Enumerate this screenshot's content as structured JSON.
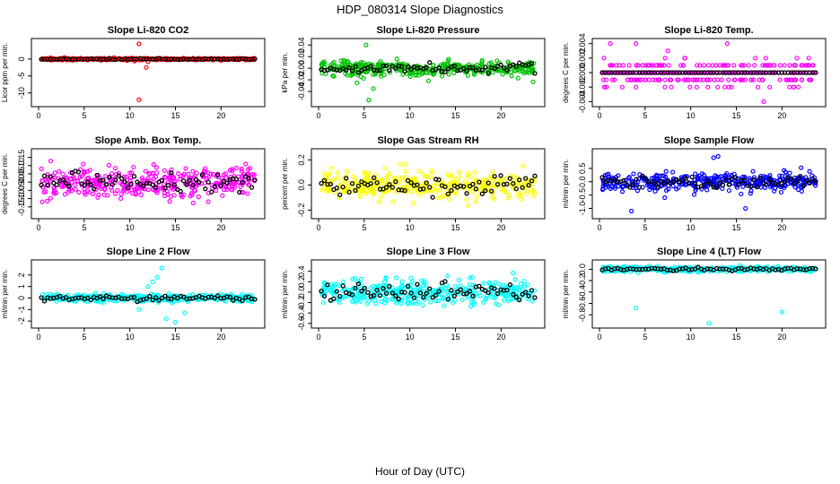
{
  "figure": {
    "title": "HDP_080314  Slope Diagnostics",
    "xlabel": "Hour of Day (UTC)"
  },
  "chart_data": [
    {
      "type": "scatter",
      "title": "Slope Li-820 CO2",
      "ylabel": "Licor ppm per min.",
      "color": "#ff0000",
      "xlim": [
        0,
        24
      ],
      "ylim": [
        -13,
        5
      ],
      "xticks": [
        0,
        5,
        10,
        15,
        20
      ],
      "xtick_labels": [
        "0",
        "5",
        "10",
        "15",
        "20"
      ],
      "yticks": [
        -10,
        -5,
        0
      ],
      "ytick_labels": [
        "-10",
        "-5",
        "0"
      ],
      "spread": 0.25,
      "outliers": [
        [
          11,
          4.5
        ],
        [
          11,
          -12
        ],
        [
          11.8,
          -2.5
        ],
        [
          12,
          -0.8
        ],
        [
          10.5,
          -0.6
        ]
      ]
    },
    {
      "type": "scatter",
      "title": "Slope Li-820 Pressure",
      "ylabel": "kPa per min.",
      "color": "#00c000",
      "xlim": [
        0,
        24
      ],
      "ylim": [
        -0.06,
        0.045
      ],
      "xticks": [
        0,
        5,
        10,
        15,
        20
      ],
      "xtick_labels": [
        "0",
        "5",
        "10",
        "15",
        "20"
      ],
      "yticks": [
        -0.04,
        -0.02,
        0.0,
        0.02,
        0.04
      ],
      "ytick_labels": [
        "-0.04",
        "-0.02",
        "0.00",
        "0.02",
        "0.04"
      ],
      "spread": 0.012,
      "outliers": [
        [
          5.2,
          0.04
        ],
        [
          5.5,
          -0.055
        ],
        [
          6,
          -0.035
        ],
        [
          4.2,
          -0.025
        ]
      ]
    },
    {
      "type": "scatter",
      "title": "Slope Li-820 Temp.",
      "ylabel": "degrees C per min.",
      "color": "#ff00ff",
      "xlim": [
        0,
        24
      ],
      "ylim": [
        -0.0042,
        0.0042
      ],
      "xticks": [
        0,
        5,
        10,
        15,
        20
      ],
      "xtick_labels": [
        "0",
        "5",
        "10",
        "15",
        "20"
      ],
      "yticks": [
        -0.004,
        -0.002,
        0.0,
        0.002,
        0.004
      ],
      "ytick_labels": [
        "-0.004",
        "-0.002",
        "0.000",
        "0.002",
        "0.004"
      ],
      "spread": 0.001,
      "outliers": [
        [
          1.2,
          0.004
        ],
        [
          4,
          0.004
        ],
        [
          14,
          0.004
        ],
        [
          18,
          -0.004
        ]
      ]
    },
    {
      "type": "scatter",
      "title": "Slope Amb. Box Temp.",
      "ylabel": "degrees C per min.",
      "color": "#ff00ff",
      "xlim": [
        0,
        24
      ],
      "ylim": [
        -0.2,
        0.18
      ],
      "xticks": [
        0,
        5,
        10,
        15,
        20
      ],
      "xtick_labels": [
        "0",
        "5",
        "10",
        "15",
        "20"
      ],
      "yticks": [
        -0.15,
        -0.1,
        -0.05,
        0.0,
        0.05,
        0.1,
        0.15
      ],
      "ytick_labels": [
        "-0.15",
        "-0.10",
        "-0.05",
        "0.00",
        "0.05",
        "0.10",
        "0.15"
      ],
      "spread": 0.09,
      "outliers": []
    },
    {
      "type": "scatter",
      "title": "Slope Gas Stream RH",
      "ylabel": "percent per min.",
      "color": "#ffff00",
      "xlim": [
        0,
        24
      ],
      "ylim": [
        -0.24,
        0.26
      ],
      "xticks": [
        0,
        5,
        10,
        15,
        20
      ],
      "xtick_labels": [
        "0",
        "5",
        "10",
        "15",
        "20"
      ],
      "yticks": [
        -0.2,
        0.0,
        0.2
      ],
      "ytick_labels": [
        "-0.2",
        "0.0",
        "0.2"
      ],
      "spread": 0.09,
      "outliers": []
    },
    {
      "type": "scatter",
      "title": "Slope Sample Flow",
      "ylabel": "ml/min per min.",
      "color": "#0000ff",
      "xlim": [
        0,
        24
      ],
      "ylim": [
        -1.25,
        1.1
      ],
      "xticks": [
        0,
        5,
        10,
        15,
        20
      ],
      "xtick_labels": [
        "0",
        "5",
        "10",
        "15",
        "20"
      ],
      "yticks": [
        -1.0,
        -0.5,
        0.0,
        0.5
      ],
      "ytick_labels": [
        "-1.0",
        "-0.5",
        "0.0",
        "0.5"
      ],
      "spread": 0.3,
      "outliers": [
        [
          12.5,
          0.9
        ],
        [
          13,
          0.95
        ],
        [
          3.5,
          -1.1
        ],
        [
          16,
          -1.0
        ]
      ]
    },
    {
      "type": "scatter",
      "title": "Slope Line 2 Flow",
      "ylabel": "ml/min per min.",
      "color": "#00ffff",
      "xlim": [
        0,
        24
      ],
      "ylim": [
        -2.3,
        3.0
      ],
      "xticks": [
        0,
        5,
        10,
        15,
        20
      ],
      "xtick_labels": [
        "0",
        "5",
        "10",
        "15",
        "20"
      ],
      "yticks": [
        -2,
        -1,
        0,
        1,
        2
      ],
      "ytick_labels": [
        "-2",
        "-1",
        "0",
        "1",
        "2"
      ],
      "spread": 0.3,
      "outliers": [
        [
          13.5,
          2.6
        ],
        [
          13,
          1.8
        ],
        [
          12.5,
          1.4
        ],
        [
          14,
          -1.8
        ],
        [
          15,
          -2.1
        ],
        [
          11,
          -1.0
        ],
        [
          16,
          -1.3
        ],
        [
          12,
          1.0
        ]
      ]
    },
    {
      "type": "scatter",
      "title": "Slope Line 3 Flow",
      "ylabel": "ml/min per min.",
      "color": "#00ffff",
      "xlim": [
        0,
        24
      ],
      "ylim": [
        -0.62,
        0.55
      ],
      "xticks": [
        0,
        5,
        10,
        15,
        20
      ],
      "xtick_labels": [
        "0",
        "5",
        "10",
        "15",
        "20"
      ],
      "yticks": [
        -0.6,
        -0.4,
        -0.2,
        0.0,
        0.2,
        0.4
      ],
      "ytick_labels": [
        "-0.6",
        "-0.4",
        "-0.2",
        "0.0",
        "0.2",
        "0.4"
      ],
      "spread": 0.22,
      "outliers": []
    },
    {
      "type": "scatter",
      "title": "Slope Line 4 (LT) Flow",
      "ylabel": "ml/min per min.",
      "color": "#00ffff",
      "xlim": [
        0,
        24
      ],
      "ylim": [
        -0.97,
        0.1
      ],
      "xticks": [
        0,
        5,
        10,
        15,
        20
      ],
      "xtick_labels": [
        "0",
        "5",
        "10",
        "15",
        "20"
      ],
      "yticks": [
        -0.8,
        -0.6,
        -0.4,
        -0.2,
        0.0
      ],
      "ytick_labels": [
        "-0.8",
        "-0.6",
        "-0.4",
        "-0.2",
        "0.0"
      ],
      "spread": 0.04,
      "outliers": [
        [
          4,
          -0.68
        ],
        [
          12,
          -0.95
        ],
        [
          20,
          -0.75
        ]
      ]
    }
  ]
}
